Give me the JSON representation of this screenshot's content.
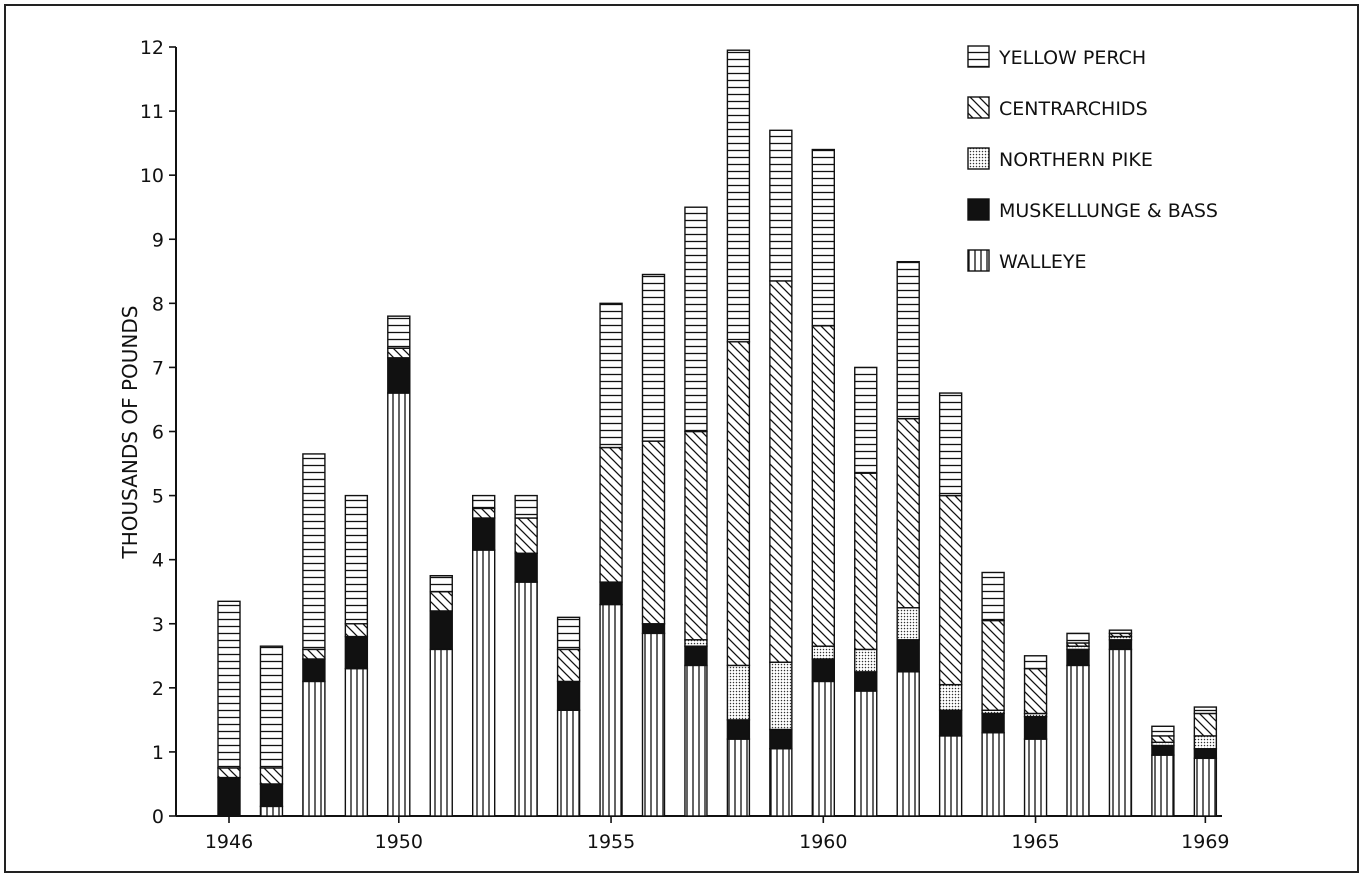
{
  "chart_data": {
    "type": "bar",
    "stacked": true,
    "title": "",
    "xlabel": "",
    "ylabel": "THOUSANDS OF POUNDS",
    "ylim": [
      0,
      12
    ],
    "yticks": [
      "0",
      "1",
      "2",
      "3",
      "4",
      "5",
      "6",
      "7",
      "8",
      "9",
      "10",
      "11",
      "12"
    ],
    "xtick_labels": [
      {
        "year": 1946,
        "label": "1946"
      },
      {
        "year": 1950,
        "label": "1950"
      },
      {
        "year": 1955,
        "label": "1955"
      },
      {
        "year": 1960,
        "label": "1960"
      },
      {
        "year": 1965,
        "label": "1965"
      },
      {
        "year": 1969,
        "label": "1969"
      }
    ],
    "categories": [
      1946,
      1947,
      1948,
      1949,
      1950,
      1951,
      1952,
      1953,
      1954,
      1955,
      1956,
      1957,
      1958,
      1959,
      1960,
      1961,
      1962,
      1963,
      1964,
      1965,
      1966,
      1967,
      1968,
      1969
    ],
    "grid": false,
    "legend_position": "top-right",
    "legend_order": [
      "yellow_perch",
      "centrarchids",
      "northern_pike",
      "muskellunge_bass",
      "walleye"
    ],
    "series": [
      {
        "key": "walleye",
        "name": "WALLEYE",
        "pattern": "vertical",
        "values": [
          0,
          0.15,
          2.1,
          2.3,
          6.6,
          2.6,
          4.15,
          3.65,
          1.65,
          3.3,
          2.85,
          2.35,
          1.2,
          1.05,
          2.1,
          1.95,
          2.25,
          1.25,
          1.3,
          1.2,
          2.35,
          2.6,
          0.95,
          0.9
        ]
      },
      {
        "key": "muskellunge_bass",
        "name": "MUSKELLUNGE & BASS",
        "pattern": "solid",
        "values": [
          0.6,
          0.35,
          0.35,
          0.5,
          0.55,
          0.6,
          0.5,
          0.45,
          0.45,
          0.35,
          0.15,
          0.3,
          0.3,
          0.3,
          0.35,
          0.3,
          0.5,
          0.4,
          0.3,
          0.35,
          0.25,
          0.15,
          0.15,
          0.15
        ]
      },
      {
        "key": "northern_pike",
        "name": "NORTHERN PIKE",
        "pattern": "dotted",
        "values": [
          0,
          0,
          0,
          0,
          0,
          0,
          0,
          0,
          0,
          0,
          0,
          0.1,
          0.85,
          1.05,
          0.2,
          0.35,
          0.5,
          0.4,
          0.05,
          0.05,
          0.05,
          0.05,
          0.05,
          0.2
        ]
      },
      {
        "key": "centrarchids",
        "name": "CENTRARCHIDS",
        "pattern": "diagonal",
        "values": [
          0.15,
          0.25,
          0.15,
          0.2,
          0.15,
          0.3,
          0.15,
          0.55,
          0.5,
          2.1,
          2.85,
          3.25,
          5.05,
          5.95,
          5.0,
          2.75,
          2.95,
          2.95,
          1.4,
          0.7,
          0.05,
          0.05,
          0.1,
          0.35
        ]
      },
      {
        "key": "yellow_perch",
        "name": "YELLOW PERCH",
        "pattern": "horizontal",
        "values": [
          2.6,
          1.9,
          3.05,
          2.0,
          0.5,
          0.25,
          0.2,
          0.35,
          0.5,
          2.25,
          2.6,
          3.5,
          4.55,
          2.35,
          2.75,
          1.65,
          2.45,
          1.6,
          0.75,
          0.2,
          0.15,
          0.05,
          0.15,
          0.1
        ]
      }
    ]
  }
}
